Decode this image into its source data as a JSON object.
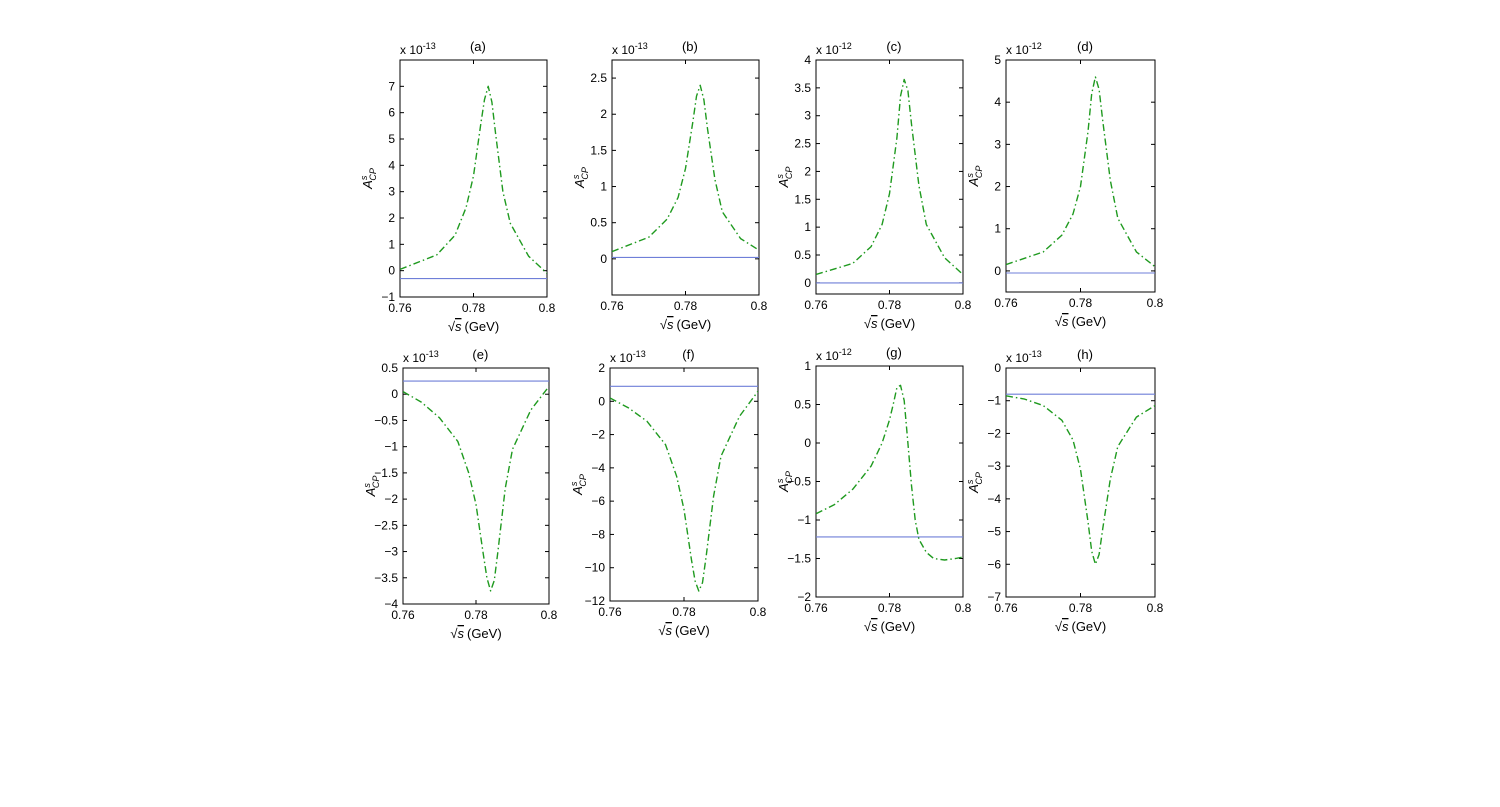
{
  "chart_data": [
    {
      "type": "line",
      "panel": "(a)",
      "exponent": "x 10",
      "exp_power": "-13",
      "xlabel_root": "√",
      "xlabel_var": "s",
      "xlabel_unit": "(GeV)",
      "ylabel_main": "A",
      "ylabel_sup": "s",
      "ylabel_sub": "CP",
      "xlim": [
        0.76,
        0.8
      ],
      "ylim": [
        -1,
        8
      ],
      "xticks": [
        0.76,
        0.78,
        0.8
      ],
      "xtick_labels": [
        "0.76",
        "0.78",
        "0.8"
      ],
      "yticks": [
        -1,
        0,
        1,
        2,
        3,
        4,
        5,
        6,
        7
      ],
      "ytick_labels": [
        "−1",
        "0",
        "1",
        "2",
        "3",
        "4",
        "5",
        "6",
        "7"
      ],
      "series": [
        {
          "style": "solid",
          "color": "#6f7fd8",
          "x": [
            0.76,
            0.8
          ],
          "y": [
            -0.3,
            -0.3
          ]
        },
        {
          "style": "dashdot",
          "color": "#1f9a1f",
          "x": [
            0.76,
            0.77,
            0.775,
            0.778,
            0.78,
            0.782,
            0.783,
            0.784,
            0.785,
            0.786,
            0.788,
            0.79,
            0.795,
            0.8
          ],
          "y": [
            0.05,
            0.6,
            1.35,
            2.4,
            3.6,
            5.6,
            6.5,
            7.0,
            6.4,
            5.2,
            3.0,
            1.8,
            0.55,
            -0.1
          ]
        }
      ]
    },
    {
      "type": "line",
      "panel": "(b)",
      "exponent": "x 10",
      "exp_power": "-13",
      "xlabel_root": "√",
      "xlabel_var": "s",
      "xlabel_unit": "(GeV)",
      "ylabel_main": "A",
      "ylabel_sup": "s",
      "ylabel_sub": "CP",
      "xlim": [
        0.76,
        0.8
      ],
      "ylim": [
        -0.5,
        2.75
      ],
      "xticks": [
        0.76,
        0.78,
        0.8
      ],
      "xtick_labels": [
        "0.76",
        "0.78",
        "0.8"
      ],
      "yticks": [
        0,
        0.5,
        1,
        1.5,
        2,
        2.5
      ],
      "ytick_labels": [
        "0",
        "0.5",
        "1",
        "1.5",
        "2",
        "2.5"
      ],
      "series": [
        {
          "style": "solid",
          "color": "#6f7fd8",
          "x": [
            0.76,
            0.8
          ],
          "y": [
            0.02,
            0.02
          ]
        },
        {
          "style": "dashdot",
          "color": "#1f9a1f",
          "x": [
            0.76,
            0.77,
            0.775,
            0.778,
            0.78,
            0.782,
            0.783,
            0.784,
            0.785,
            0.786,
            0.788,
            0.79,
            0.795,
            0.8
          ],
          "y": [
            0.1,
            0.3,
            0.55,
            0.85,
            1.25,
            1.9,
            2.25,
            2.4,
            2.2,
            1.8,
            1.1,
            0.65,
            0.28,
            0.12
          ]
        }
      ]
    },
    {
      "type": "line",
      "panel": "(c)",
      "exponent": "x 10",
      "exp_power": "-12",
      "xlabel_root": "√",
      "xlabel_var": "s",
      "xlabel_unit": "(GeV)",
      "ylabel_main": "A",
      "ylabel_sup": "s",
      "ylabel_sub": "CP",
      "xlim": [
        0.76,
        0.8
      ],
      "ylim": [
        -0.2,
        4
      ],
      "xticks": [
        0.76,
        0.78,
        0.8
      ],
      "xtick_labels": [
        "0.76",
        "0.78",
        "0.8"
      ],
      "yticks": [
        0,
        0.5,
        1,
        1.5,
        2,
        2.5,
        3,
        3.5,
        4
      ],
      "ytick_labels": [
        "0",
        "0.5",
        "1",
        "1.5",
        "2",
        "2.5",
        "3",
        "3.5",
        "4"
      ],
      "series": [
        {
          "style": "solid",
          "color": "#6f7fd8",
          "x": [
            0.76,
            0.8
          ],
          "y": [
            0.0,
            0.0
          ]
        },
        {
          "style": "dashdot",
          "color": "#1f9a1f",
          "x": [
            0.76,
            0.77,
            0.775,
            0.778,
            0.78,
            0.782,
            0.783,
            0.784,
            0.785,
            0.786,
            0.788,
            0.79,
            0.795,
            0.8
          ],
          "y": [
            0.15,
            0.35,
            0.65,
            1.05,
            1.6,
            2.6,
            3.35,
            3.65,
            3.45,
            2.85,
            1.75,
            1.05,
            0.45,
            0.15
          ]
        }
      ]
    },
    {
      "type": "line",
      "panel": "(d)",
      "exponent": "x 10",
      "exp_power": "-12",
      "xlabel_root": "√",
      "xlabel_var": "s",
      "xlabel_unit": "(GeV)",
      "ylabel_main": "A",
      "ylabel_sup": "s",
      "ylabel_sub": "CP",
      "xlim": [
        0.76,
        0.8
      ],
      "ylim": [
        -0.5,
        5
      ],
      "xticks": [
        0.76,
        0.78,
        0.8
      ],
      "xtick_labels": [
        "0.76",
        "0.78",
        "0.8"
      ],
      "yticks": [
        0,
        1,
        2,
        3,
        4,
        5
      ],
      "ytick_labels": [
        "0",
        "1",
        "2",
        "3",
        "4",
        "5"
      ],
      "series": [
        {
          "style": "solid",
          "color": "#6f7fd8",
          "x": [
            0.76,
            0.8
          ],
          "y": [
            -0.05,
            -0.05
          ]
        },
        {
          "style": "dashdot",
          "color": "#1f9a1f",
          "x": [
            0.76,
            0.77,
            0.775,
            0.778,
            0.78,
            0.782,
            0.783,
            0.784,
            0.785,
            0.786,
            0.788,
            0.79,
            0.795,
            0.8
          ],
          "y": [
            0.15,
            0.45,
            0.85,
            1.35,
            2.0,
            3.3,
            4.2,
            4.6,
            4.3,
            3.55,
            2.15,
            1.25,
            0.45,
            0.1
          ]
        }
      ]
    },
    {
      "type": "line",
      "panel": "(e)",
      "exponent": "x 10",
      "exp_power": "-13",
      "xlabel_root": "√",
      "xlabel_var": "s",
      "xlabel_unit": "(GeV)",
      "ylabel_main": "A",
      "ylabel_sup": "s",
      "ylabel_sub": "CP",
      "xlim": [
        0.76,
        0.8
      ],
      "ylim": [
        -4,
        0.5
      ],
      "xticks": [
        0.76,
        0.78,
        0.8
      ],
      "xtick_labels": [
        "0.76",
        "0.78",
        "0.8"
      ],
      "yticks": [
        -4,
        -3.5,
        -3,
        -2.5,
        -2,
        -1.5,
        -1,
        -0.5,
        0,
        0.5
      ],
      "ytick_labels": [
        "−4",
        "−3.5",
        "−3",
        "−2.5",
        "−2",
        "−1.5",
        "−1",
        "−0.5",
        "0",
        "0.5"
      ],
      "series": [
        {
          "style": "solid",
          "color": "#6f7fd8",
          "x": [
            0.76,
            0.8
          ],
          "y": [
            0.25,
            0.25
          ]
        },
        {
          "style": "dashdot",
          "color": "#1f9a1f",
          "x": [
            0.76,
            0.765,
            0.77,
            0.775,
            0.778,
            0.78,
            0.782,
            0.783,
            0.784,
            0.785,
            0.786,
            0.788,
            0.79,
            0.795,
            0.8
          ],
          "y": [
            0.05,
            -0.15,
            -0.45,
            -0.9,
            -1.5,
            -2.1,
            -3.05,
            -3.5,
            -3.75,
            -3.55,
            -3.0,
            -1.8,
            -1.05,
            -0.3,
            0.15
          ]
        }
      ]
    },
    {
      "type": "line",
      "panel": "(f)",
      "exponent": "x 10",
      "exp_power": "-13",
      "xlabel_root": "√",
      "xlabel_var": "s",
      "xlabel_unit": "(GeV)",
      "ylabel_main": "A",
      "ylabel_sup": "s",
      "ylabel_sub": "CP",
      "xlim": [
        0.76,
        0.8
      ],
      "ylim": [
        -12,
        2
      ],
      "xticks": [
        0.76,
        0.78,
        0.8
      ],
      "xtick_labels": [
        "0.76",
        "0.78",
        "0.8"
      ],
      "yticks": [
        -12,
        -10,
        -8,
        -6,
        -4,
        -2,
        0,
        2
      ],
      "ytick_labels": [
        "−12",
        "−10",
        "−8",
        "−6",
        "−4",
        "−2",
        "0",
        "2"
      ],
      "series": [
        {
          "style": "solid",
          "color": "#6f7fd8",
          "x": [
            0.76,
            0.8
          ],
          "y": [
            0.9,
            0.9
          ]
        },
        {
          "style": "dashdot",
          "color": "#1f9a1f",
          "x": [
            0.76,
            0.765,
            0.77,
            0.775,
            0.778,
            0.78,
            0.782,
            0.783,
            0.784,
            0.785,
            0.786,
            0.788,
            0.79,
            0.795,
            0.8
          ],
          "y": [
            0.2,
            -0.4,
            -1.2,
            -2.6,
            -4.5,
            -6.5,
            -9.5,
            -10.8,
            -11.4,
            -10.9,
            -9.3,
            -5.7,
            -3.3,
            -0.9,
            0.6
          ]
        }
      ]
    },
    {
      "type": "line",
      "panel": "(g)",
      "exponent": "x 10",
      "exp_power": "-12",
      "xlabel_root": "√",
      "xlabel_var": "s",
      "xlabel_unit": "(GeV)",
      "ylabel_main": "A",
      "ylabel_sup": "s",
      "ylabel_sub": "CP",
      "xlim": [
        0.76,
        0.8
      ],
      "ylim": [
        -2,
        1
      ],
      "xticks": [
        0.76,
        0.78,
        0.8
      ],
      "xtick_labels": [
        "0.76",
        "0.78",
        "0.8"
      ],
      "yticks": [
        -2,
        -1.5,
        -1,
        -0.5,
        0,
        0.5,
        1
      ],
      "ytick_labels": [
        "−2",
        "−1.5",
        "−1",
        "−0.5",
        "0",
        "0.5",
        "1"
      ],
      "series": [
        {
          "style": "solid",
          "color": "#6f7fd8",
          "x": [
            0.76,
            0.8
          ],
          "y": [
            -1.22,
            -1.22
          ]
        },
        {
          "style": "dashdot",
          "color": "#1f9a1f",
          "x": [
            0.76,
            0.765,
            0.77,
            0.775,
            0.778,
            0.78,
            0.781,
            0.782,
            0.783,
            0.784,
            0.785,
            0.786,
            0.787,
            0.788,
            0.79,
            0.792,
            0.795,
            0.798,
            0.8
          ],
          "y": [
            -0.92,
            -0.8,
            -0.6,
            -0.3,
            0.0,
            0.3,
            0.5,
            0.72,
            0.75,
            0.55,
            0.0,
            -0.55,
            -1.0,
            -1.25,
            -1.42,
            -1.5,
            -1.52,
            -1.5,
            -1.48
          ]
        }
      ]
    },
    {
      "type": "line",
      "panel": "(h)",
      "exponent": "x 10",
      "exp_power": "-13",
      "xlabel_root": "√",
      "xlabel_var": "s",
      "xlabel_unit": "(GeV)",
      "ylabel_main": "A",
      "ylabel_sup": "s",
      "ylabel_sub": "CP",
      "xlim": [
        0.76,
        0.8
      ],
      "ylim": [
        -7,
        0
      ],
      "xticks": [
        0.76,
        0.78,
        0.8
      ],
      "xtick_labels": [
        "0.76",
        "0.78",
        "0.8"
      ],
      "yticks": [
        -7,
        -6,
        -5,
        -4,
        -3,
        -2,
        -1,
        0
      ],
      "ytick_labels": [
        "−7",
        "−6",
        "−5",
        "−4",
        "−3",
        "−2",
        "−1",
        "0"
      ],
      "series": [
        {
          "style": "solid",
          "color": "#6f7fd8",
          "x": [
            0.76,
            0.8
          ],
          "y": [
            -0.8,
            -0.8
          ]
        },
        {
          "style": "dashdot",
          "color": "#1f9a1f",
          "x": [
            0.76,
            0.765,
            0.77,
            0.775,
            0.778,
            0.78,
            0.782,
            0.783,
            0.784,
            0.785,
            0.786,
            0.788,
            0.79,
            0.795,
            0.8
          ],
          "y": [
            -0.85,
            -0.95,
            -1.15,
            -1.6,
            -2.2,
            -3.1,
            -4.7,
            -5.6,
            -6.0,
            -5.7,
            -4.9,
            -3.4,
            -2.4,
            -1.5,
            -1.15
          ]
        }
      ]
    }
  ]
}
